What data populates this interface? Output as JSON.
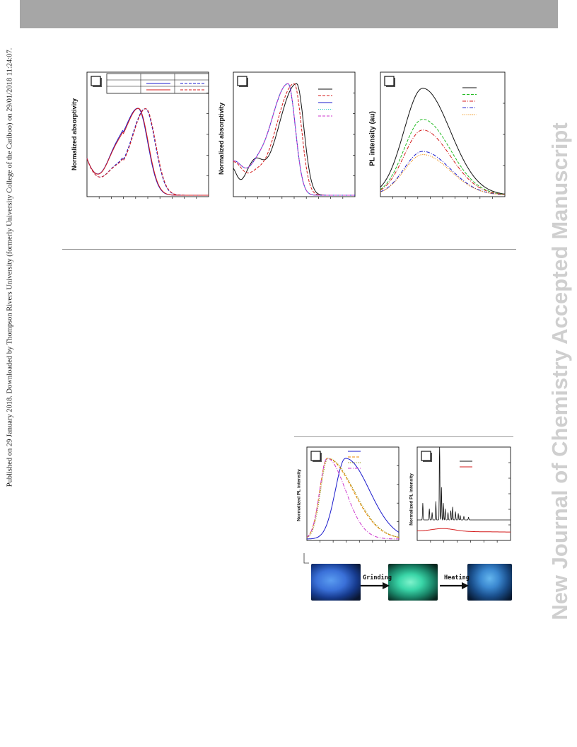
{
  "header": {
    "bar_color": "#a6a6a6"
  },
  "side_left": {
    "text": "Published on 29 January 2018. Downloaded by Thompson Rivers University (formerly University College of the Cariboo) on 29/01/2018 11:24:07."
  },
  "side_right": {
    "text": "New Journal of Chemistry Accepted Manuscript"
  },
  "figure_top": {
    "panel_a": {
      "ylabel": "Normalized absorptivity",
      "legend_table": {
        "rows": 3,
        "cols": 3
      }
    },
    "panel_b": {
      "ylabel": "Normalized absorptivity"
    },
    "panel_c": {
      "ylabel": "PL intensity (au)"
    }
  },
  "figure_bottom": {
    "panel_d": {
      "ylabel": "Normalized PL intensity"
    },
    "panel_e": {
      "ylabel": "Normalized PL intensity"
    },
    "photos": {
      "grinding_label": "Grinding",
      "heating_label": "Heating"
    }
  },
  "chart_data": [
    {
      "type": "line",
      "series": [
        {
          "color": "#1a1acc",
          "dash": "solid",
          "peak_x": 0.42
        },
        {
          "color": "#d41a1a",
          "dash": "solid",
          "peak_x": 0.42
        },
        {
          "color": "#1a1acc",
          "dash": "dashed",
          "peak_x": 0.48
        },
        {
          "color": "#d41a1a",
          "dash": "dashed",
          "peak_x": 0.48
        }
      ]
    },
    {
      "type": "line",
      "series": [
        {
          "color": "#111111",
          "dash": "solid"
        },
        {
          "color": "#d41a1a",
          "dash": "dashed"
        },
        {
          "color": "#1a1acc",
          "dash": "solid"
        },
        {
          "color": "#33cccc",
          "dash": "dotted"
        },
        {
          "color": "#cc33cc",
          "dash": "dashed"
        }
      ]
    },
    {
      "type": "line",
      "series": [
        {
          "color": "#111111",
          "dash": "solid",
          "height": 1.0
        },
        {
          "color": "#22bb22",
          "dash": "dashed",
          "height": 0.71
        },
        {
          "color": "#d41a1a",
          "dash": "dashdot",
          "height": 0.61
        },
        {
          "color": "#1a1acc",
          "dash": "dashdot",
          "height": 0.41
        },
        {
          "color": "#ee8800",
          "dash": "dotted",
          "height": 0.38
        }
      ]
    },
    {
      "type": "line",
      "series": [
        {
          "color": "#1a1acc",
          "dash": "solid"
        },
        {
          "color": "#ee8800",
          "dash": "dashed"
        },
        {
          "color": "#888800",
          "dash": "dotted"
        },
        {
          "color": "#cc33cc",
          "dash": "dashdot"
        }
      ]
    },
    {
      "type": "line",
      "series": [
        {
          "color": "#111111",
          "dash": "solid"
        },
        {
          "color": "#d41a1a",
          "dash": "solid"
        }
      ]
    }
  ]
}
